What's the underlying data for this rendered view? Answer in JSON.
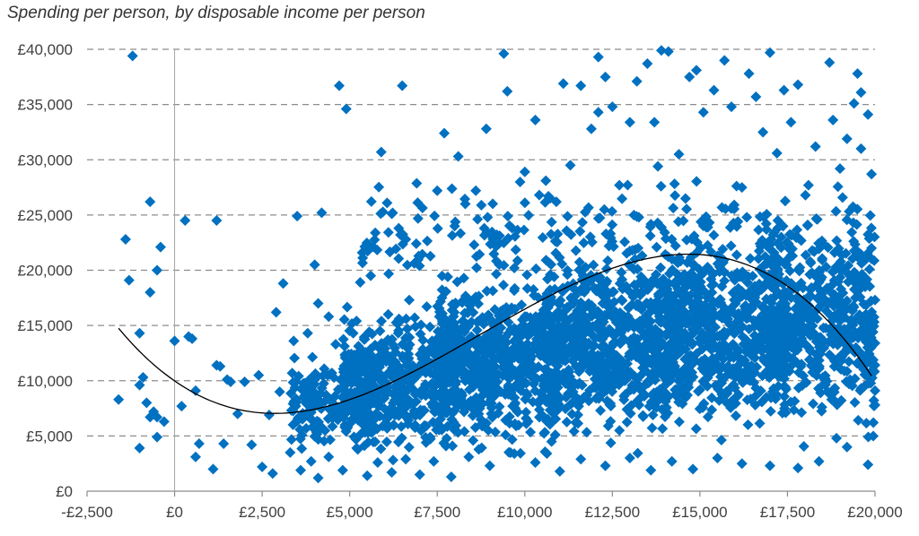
{
  "chart_data": {
    "type": "scatter",
    "title": "Spending per person, by disposable income per person",
    "xlabel": "",
    "ylabel": "",
    "xlim": [
      -2500,
      20000
    ],
    "ylim": [
      0,
      40000
    ],
    "x_ticks": [
      -2500,
      0,
      2500,
      5000,
      7500,
      10000,
      12500,
      15000,
      17500,
      20000
    ],
    "x_tick_labels": [
      "-£2,500",
      "£0",
      "£2,500",
      "£5,000",
      "£7,500",
      "£10,000",
      "£12,500",
      "£15,000",
      "£17,500",
      "£20,000"
    ],
    "y_ticks": [
      0,
      5000,
      10000,
      15000,
      20000,
      25000,
      30000,
      35000,
      40000
    ],
    "y_tick_labels": [
      "£0",
      "£5,000",
      "£10,000",
      "£15,000",
      "£20,000",
      "£25,000",
      "£30,000",
      "£35,000",
      "£40,000"
    ],
    "grid": "horizontal dashed",
    "legend": "none",
    "marker_color": "#0070c0",
    "trend_color": "#000000",
    "series": [
      {
        "values": [
          [
            -1200,
            39400
          ],
          [
            -1400,
            22800
          ],
          [
            -700,
            26200
          ],
          [
            -500,
            20000
          ],
          [
            -400,
            22100
          ],
          [
            -1300,
            19100
          ],
          [
            -700,
            18000
          ],
          [
            300,
            24500
          ],
          [
            1200,
            24500
          ],
          [
            -1600,
            8300
          ],
          [
            -1000,
            14300
          ],
          [
            -900,
            10300
          ],
          [
            -1000,
            9600
          ],
          [
            -800,
            8000
          ],
          [
            -700,
            6700
          ],
          [
            -600,
            7200
          ],
          [
            -500,
            6700
          ],
          [
            -300,
            6300
          ],
          [
            -1000,
            3900
          ],
          [
            -500,
            4900
          ],
          [
            0,
            13600
          ],
          [
            400,
            14000
          ],
          [
            500,
            13800
          ],
          [
            200,
            7700
          ],
          [
            600,
            9100
          ],
          [
            700,
            4300
          ],
          [
            600,
            3100
          ],
          [
            1100,
            2000
          ],
          [
            1200,
            11400
          ],
          [
            1300,
            11300
          ],
          [
            1400,
            4300
          ],
          [
            1500,
            10100
          ],
          [
            1600,
            9900
          ],
          [
            1800,
            7000
          ],
          [
            2000,
            9900
          ],
          [
            2200,
            4200
          ],
          [
            2400,
            10500
          ],
          [
            2700,
            6900
          ],
          [
            2900,
            16200
          ],
          [
            3000,
            9000
          ],
          [
            3100,
            18800
          ],
          [
            3400,
            13600
          ],
          [
            3500,
            24900
          ],
          [
            3800,
            14300
          ],
          [
            4000,
            20500
          ],
          [
            4100,
            17000
          ],
          [
            4200,
            25200
          ],
          [
            4400,
            15800
          ],
          [
            4600,
            13300
          ],
          [
            4700,
            36700
          ],
          [
            4900,
            34600
          ],
          [
            5100,
            14300
          ],
          [
            5300,
            18900
          ],
          [
            5600,
            19500
          ],
          [
            5900,
            30700
          ],
          [
            6100,
            16000
          ],
          [
            6400,
            23800
          ],
          [
            6500,
            36700
          ],
          [
            6700,
            17300
          ],
          [
            6900,
            22400
          ],
          [
            7200,
            16700
          ],
          [
            7500,
            27200
          ],
          [
            7700,
            32400
          ],
          [
            7800,
            19400
          ],
          [
            8100,
            30300
          ],
          [
            8300,
            26000
          ],
          [
            8600,
            27200
          ],
          [
            8900,
            32800
          ],
          [
            9200,
            23200
          ],
          [
            9400,
            39600
          ],
          [
            9500,
            36200
          ],
          [
            9700,
            20200
          ],
          [
            10000,
            28900
          ],
          [
            10300,
            33600
          ],
          [
            10600,
            28100
          ],
          [
            10900,
            26200
          ],
          [
            11100,
            36900
          ],
          [
            11300,
            29500
          ],
          [
            11600,
            36700
          ],
          [
            11900,
            32800
          ],
          [
            12100,
            39300
          ],
          [
            12100,
            34300
          ],
          [
            12300,
            37500
          ],
          [
            12500,
            34800
          ],
          [
            12700,
            27700
          ],
          [
            13000,
            33400
          ],
          [
            13200,
            37100
          ],
          [
            13500,
            38700
          ],
          [
            13700,
            33400
          ],
          [
            13800,
            29400
          ],
          [
            13900,
            39900
          ],
          [
            14100,
            39800
          ],
          [
            14400,
            30500
          ],
          [
            14700,
            37500
          ],
          [
            14900,
            38100
          ],
          [
            15100,
            34300
          ],
          [
            15400,
            36300
          ],
          [
            15700,
            39000
          ],
          [
            15900,
            34800
          ],
          [
            16200,
            27500
          ],
          [
            16400,
            37800
          ],
          [
            16600,
            35700
          ],
          [
            16800,
            32500
          ],
          [
            17000,
            39700
          ],
          [
            17200,
            30600
          ],
          [
            17400,
            36300
          ],
          [
            17600,
            33400
          ],
          [
            17800,
            36800
          ],
          [
            18100,
            27700
          ],
          [
            18300,
            31200
          ],
          [
            18700,
            38800
          ],
          [
            18800,
            33600
          ],
          [
            19000,
            29200
          ],
          [
            19200,
            31900
          ],
          [
            19400,
            35100
          ],
          [
            19600,
            36100
          ],
          [
            19800,
            34100
          ],
          [
            19900,
            28700
          ],
          [
            19600,
            31000
          ],
          [
            19500,
            37800
          ],
          [
            2500,
            2200
          ],
          [
            2800,
            1600
          ],
          [
            3300,
            3500
          ],
          [
            3600,
            1900
          ],
          [
            3900,
            2700
          ],
          [
            4100,
            1200
          ],
          [
            4400,
            3100
          ],
          [
            4800,
            1900
          ],
          [
            5200,
            3900
          ],
          [
            5500,
            1400
          ],
          [
            5800,
            2600
          ],
          [
            6200,
            1700
          ],
          [
            6600,
            2900
          ],
          [
            7000,
            1500
          ],
          [
            7400,
            2700
          ],
          [
            7900,
            1300
          ],
          [
            8400,
            3100
          ],
          [
            9000,
            2300
          ],
          [
            9700,
            3400
          ],
          [
            10300,
            2600
          ],
          [
            11000,
            1800
          ],
          [
            11600,
            2900
          ],
          [
            12300,
            2300
          ],
          [
            13000,
            3000
          ],
          [
            13600,
            1900
          ],
          [
            14200,
            2700
          ],
          [
            14800,
            2000
          ],
          [
            15500,
            3000
          ],
          [
            16200,
            2500
          ],
          [
            17000,
            2300
          ],
          [
            17800,
            2100
          ],
          [
            18400,
            2700
          ],
          [
            19200,
            4000
          ],
          [
            19800,
            2400
          ],
          [
            18900,
            4800
          ],
          [
            20000,
            17300
          ],
          [
            20000,
            13400
          ],
          [
            20000,
            9100
          ],
          [
            19900,
            22000
          ],
          [
            20000,
            7800
          ]
        ]
      }
    ],
    "cloud": [
      {
        "x": [
          3300,
          5800
        ],
        "y": [
          2500,
          14000
        ],
        "count": 200
      },
      {
        "x": [
          4800,
          8000
        ],
        "y": [
          2000,
          17500
        ],
        "count": 460
      },
      {
        "x": [
          7500,
          11000
        ],
        "y": [
          2000,
          21500
        ],
        "count": 640
      },
      {
        "x": [
          10500,
          14500
        ],
        "y": [
          2500,
          24500
        ],
        "count": 720
      },
      {
        "x": [
          14000,
          17500
        ],
        "y": [
          3000,
          26500
        ],
        "count": 620
      },
      {
        "x": [
          17000,
          20000
        ],
        "y": [
          3500,
          26000
        ],
        "count": 480
      },
      {
        "x": [
          5000,
          20000
        ],
        "y": [
          17000,
          29500
        ],
        "count": 230
      }
    ],
    "trend": {
      "x": [
        -1600,
        19900
      ],
      "poly": [
        9980,
        -2.2,
        0.00046,
        -1.75e-08
      ]
    }
  }
}
